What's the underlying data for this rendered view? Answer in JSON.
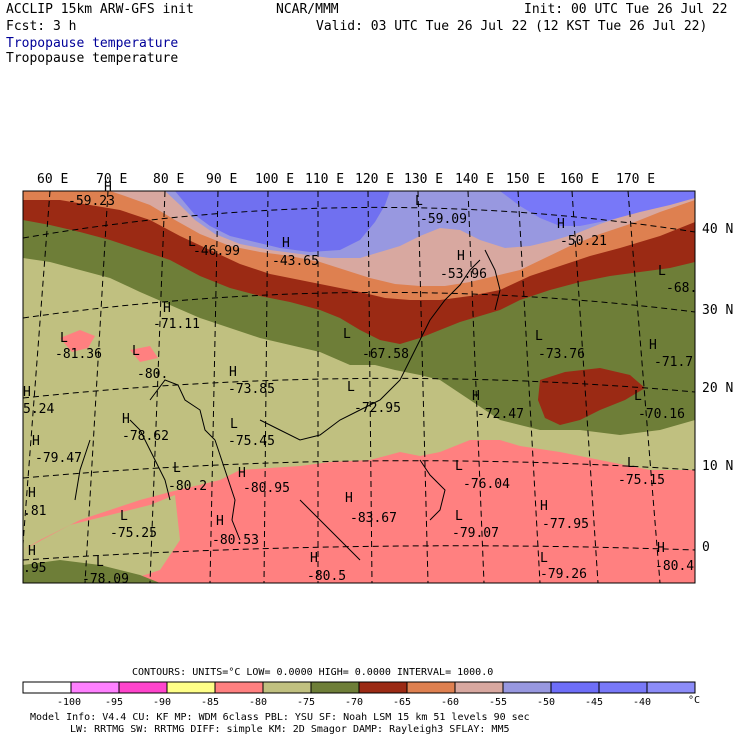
{
  "header": {
    "line1_left": "ACCLIP 15km ARW-GFS init",
    "line1_mid": "NCAR/MMM",
    "line1_right": "Init: 00 UTC Tue 26 Jul 22",
    "line2_left": "Fcst:    3 h",
    "line2_right": "Valid: 03 UTC Tue 26 Jul 22 (12 KST Tue 26 Jul 22)",
    "field_title_1": "Tropopause temperature",
    "field_title_2": "Tropopause temperature"
  },
  "longitude_labels": [
    "60 E",
    "70 E",
    "80 E",
    "90 E",
    "100 E",
    "110 E",
    "120 E",
    "130 E",
    "140 E",
    "150 E",
    "160 E",
    "170 E"
  ],
  "latitude_labels": [
    "40 N",
    "30 N",
    "20 N",
    "10 N",
    "0"
  ],
  "map_labels": [
    {
      "text": "-59.23"
    },
    {
      "text": "-46.99"
    },
    {
      "text": "-43.65"
    },
    {
      "text": "-59.09"
    },
    {
      "text": "-50.21"
    },
    {
      "text": "-53.96"
    },
    {
      "text": "-68."
    },
    {
      "text": "-71.11"
    },
    {
      "text": "-81.36"
    },
    {
      "text": "-67.58"
    },
    {
      "text": "-73.76"
    },
    {
      "text": "-71.7"
    },
    {
      "text": "-80."
    },
    {
      "text": "-73.85"
    },
    {
      "text": "-72.95"
    },
    {
      "text": "-72.47"
    },
    {
      "text": "-70.16"
    },
    {
      "text": "5.24"
    },
    {
      "text": "-78.62"
    },
    {
      "text": "-75.45"
    },
    {
      "text": "-79.47"
    },
    {
      "text": "-80.2"
    },
    {
      "text": "-80.95"
    },
    {
      "text": "-76.04"
    },
    {
      "text": "-75.15"
    },
    {
      "text": ".81"
    },
    {
      "text": "-75.25"
    },
    {
      "text": "-83.67"
    },
    {
      "text": "-79.07"
    },
    {
      "text": "-77.95"
    },
    {
      "text": "-80.53"
    },
    {
      "text": ".95"
    },
    {
      "text": "-78.09"
    },
    {
      "text": "-80.5"
    },
    {
      "text": "-79.26"
    },
    {
      "text": "-80.4"
    }
  ],
  "hl_markers": [
    "H",
    "L",
    "H",
    "L",
    "H",
    "H",
    "L",
    "H",
    "L",
    "L",
    "L",
    "H",
    "L",
    "H",
    "L",
    "H",
    "L",
    "H",
    "H",
    "L",
    "H",
    "L",
    "H",
    "L",
    "L",
    "H",
    "L",
    "H",
    "L",
    "H",
    "H",
    "H",
    "L",
    "H",
    "L",
    "H"
  ],
  "footer": {
    "contours": "CONTOURS:  UNITS=°C  LOW=  0.0000      HIGH=  0.0000      INTERVAL=   1000.0",
    "legend_labels": [
      "-100",
      "-95",
      "-90",
      "-85",
      "-80",
      "-75",
      "-70",
      "-65",
      "-60",
      "-55",
      "-50",
      "-45",
      "-40"
    ],
    "legend_unit": "°C",
    "legend_colors": [
      "#ffffff",
      "#ff80ff",
      "#ff44cc",
      "#ffff88",
      "#ff8080",
      "#c0c080",
      "#6e7e38",
      "#9b2a14",
      "#de8050",
      "#d8a8a0",
      "#9898e0",
      "#6e6ef8",
      "#7878f8",
      "#8c8cf8"
    ],
    "model_line1": "Model Info: V4.4      CU: KF      MP: WDM 6class   PBL: YSU       SF: Noah LSM     15 km   51 levels   90 sec",
    "model_line2": "LW: RRTMG     SW: RRTMG   DIFF: simple KM: 2D Smagor DAMP: Rayleigh3  SFLAY: MM5"
  },
  "colors": {
    "pink": "#ff8080",
    "olive_light": "#c0c080",
    "olive_dark": "#6e7e38",
    "maroon": "#9b2a14",
    "orange": "#de8050",
    "rose": "#d8a8a0",
    "lavender": "#9898e0",
    "blue": "#7070f0"
  }
}
